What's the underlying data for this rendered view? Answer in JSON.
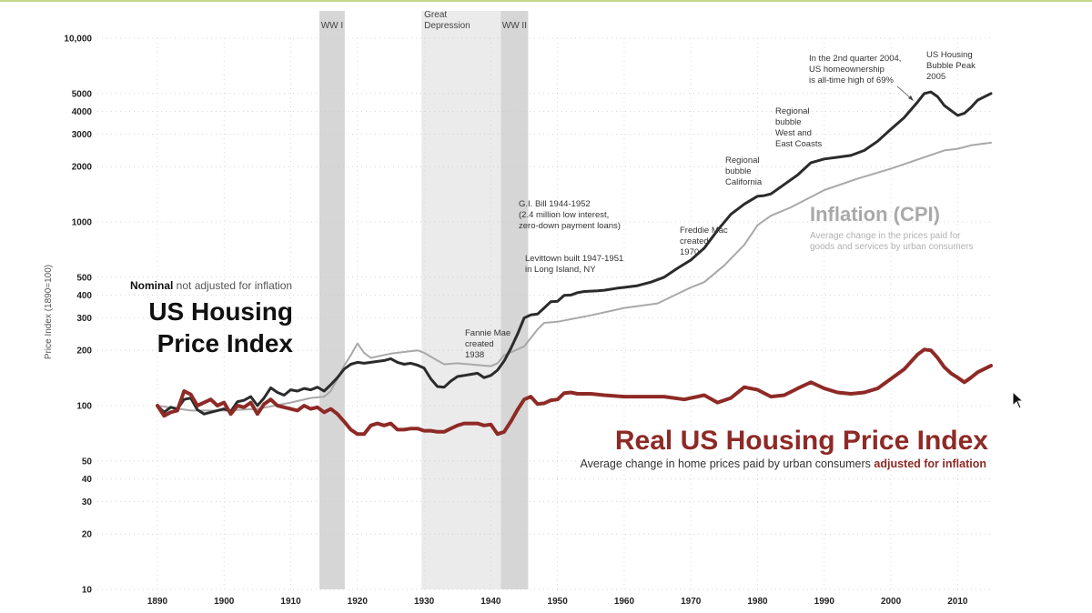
{
  "chart_data": {
    "type": "line",
    "yscale": "log",
    "ylabel": "Price Index  (1890=100)",
    "xlim": [
      1881,
      2015
    ],
    "ylim": [
      10,
      10000
    ],
    "x_ticks": [
      1890,
      1900,
      1910,
      1920,
      1930,
      1940,
      1950,
      1960,
      1970,
      1980,
      1990,
      2000,
      2010
    ],
    "y_ticks": [
      {
        "value": 10,
        "label": "10"
      },
      {
        "value": 20,
        "label": "20"
      },
      {
        "value": 30,
        "label": "30"
      },
      {
        "value": 40,
        "label": "40"
      },
      {
        "value": 50,
        "label": "50"
      },
      {
        "value": 100,
        "label": "100"
      },
      {
        "value": 200,
        "label": "200"
      },
      {
        "value": 300,
        "label": "300"
      },
      {
        "value": 400,
        "label": "400"
      },
      {
        "value": 500,
        "label": "500"
      },
      {
        "value": 1000,
        "label": "1000"
      },
      {
        "value": 2000,
        "label": "2000"
      },
      {
        "value": 3000,
        "label": "3000"
      },
      {
        "value": 4000,
        "label": "4000"
      },
      {
        "value": 5000,
        "label": "5000"
      },
      {
        "value": 10000,
        "label": "10,000"
      }
    ],
    "shaded_periods": [
      {
        "label": "WW I",
        "start": 1914.3,
        "end": 1918.1
      },
      {
        "label": "Great\nDepression",
        "start": 1929.6,
        "end": 1941.5
      },
      {
        "label": "WW II",
        "start": 1941.5,
        "end": 1945.6
      }
    ],
    "series": [
      {
        "name": "Nominal US Housing Price Index",
        "color": "#2b2b2b",
        "width": 3,
        "x": [
          1890,
          1891,
          1892,
          1893,
          1894,
          1895,
          1896,
          1897,
          1898,
          1899,
          1900,
          1901,
          1902,
          1903,
          1904,
          1905,
          1906,
          1907,
          1908,
          1909,
          1910,
          1911,
          1912,
          1913,
          1914,
          1915,
          1916,
          1917,
          1918,
          1919,
          1920,
          1921,
          1922,
          1923,
          1924,
          1925,
          1926,
          1927,
          1928,
          1929,
          1930,
          1931,
          1932,
          1933,
          1934,
          1935,
          1936,
          1937,
          1938,
          1939,
          1940,
          1941,
          1942,
          1943,
          1944,
          1945,
          1946,
          1947,
          1948,
          1949,
          1950,
          1951,
          1952,
          1953,
          1954,
          1955,
          1956,
          1957,
          1958,
          1959,
          1960,
          1962,
          1964,
          1966,
          1968,
          1970,
          1972,
          1974,
          1976,
          1978,
          1980,
          1981,
          1982,
          1984,
          1986,
          1988,
          1990,
          1992,
          1994,
          1996,
          1998,
          2000,
          2002,
          2004,
          2005,
          2006,
          2007,
          2008,
          2010,
          2011,
          2012,
          2013,
          2015
        ],
        "values": [
          100,
          92,
          98,
          96,
          108,
          110,
          95,
          90,
          92,
          94,
          96,
          93,
          105,
          107,
          112,
          100,
          110,
          125,
          118,
          114,
          122,
          120,
          124,
          122,
          126,
          120,
          130,
          142,
          158,
          168,
          172,
          170,
          172,
          174,
          176,
          180,
          172,
          168,
          170,
          166,
          160,
          140,
          127,
          126,
          136,
          144,
          146,
          148,
          150,
          142,
          146,
          156,
          175,
          205,
          245,
          300,
          312,
          315,
          340,
          368,
          370,
          398,
          400,
          412,
          418,
          420,
          422,
          425,
          430,
          436,
          440,
          450,
          470,
          500,
          560,
          620,
          720,
          900,
          1100,
          1250,
          1380,
          1390,
          1420,
          1600,
          1800,
          2100,
          2200,
          2250,
          2300,
          2450,
          2750,
          3200,
          3700,
          4500,
          5000,
          5100,
          4800,
          4300,
          3800,
          3900,
          4200,
          4600,
          5000
        ]
      },
      {
        "name": "Inflation (CPI)",
        "color": "#a8a8a8",
        "width": 2,
        "x": [
          1890,
          1895,
          1900,
          1905,
          1910,
          1913,
          1915,
          1916,
          1917,
          1918,
          1919,
          1920,
          1921,
          1922,
          1925,
          1929,
          1930,
          1932,
          1933,
          1935,
          1940,
          1941,
          1942,
          1945,
          1947,
          1948,
          1950,
          1955,
          1960,
          1965,
          1970,
          1972,
          1975,
          1978,
          1980,
          1982,
          1985,
          1990,
          1995,
          2000,
          2005,
          2008,
          2010,
          2012,
          2015
        ],
        "values": [
          100,
          94,
          94,
          96,
          104,
          110,
          112,
          120,
          140,
          165,
          188,
          218,
          194,
          182,
          192,
          200,
          194,
          176,
          168,
          170,
          164,
          170,
          188,
          210,
          260,
          282,
          286,
          310,
          340,
          360,
          440,
          470,
          580,
          750,
          960,
          1080,
          1200,
          1490,
          1720,
          1950,
          2250,
          2450,
          2500,
          2610,
          2700
        ]
      },
      {
        "name": "Real US Housing Price Index",
        "color": "#8e2a26",
        "width": 4,
        "x": [
          1890,
          1891,
          1892,
          1893,
          1894,
          1895,
          1896,
          1897,
          1898,
          1899,
          1900,
          1901,
          1902,
          1903,
          1904,
          1905,
          1906,
          1907,
          1908,
          1909,
          1910,
          1911,
          1912,
          1913,
          1914,
          1915,
          1916,
          1917,
          1918,
          1919,
          1920,
          1921,
          1922,
          1923,
          1924,
          1925,
          1926,
          1927,
          1928,
          1929,
          1930,
          1931,
          1932,
          1933,
          1934,
          1935,
          1936,
          1937,
          1938,
          1939,
          1940,
          1941,
          1942,
          1943,
          1944,
          1945,
          1946,
          1947,
          1948,
          1949,
          1950,
          1951,
          1952,
          1953,
          1955,
          1957,
          1960,
          1963,
          1966,
          1969,
          1972,
          1974,
          1976,
          1978,
          1980,
          1982,
          1984,
          1986,
          1988,
          1990,
          1992,
          1994,
          1996,
          1998,
          2000,
          2002,
          2004,
          2005,
          2006,
          2007,
          2008,
          2009,
          2010,
          2011,
          2012,
          2013,
          2015
        ],
        "values": [
          100,
          88,
          92,
          94,
          120,
          115,
          100,
          104,
          108,
          100,
          104,
          90,
          100,
          98,
          104,
          90,
          102,
          108,
          100,
          98,
          96,
          94,
          100,
          96,
          98,
          92,
          96,
          90,
          82,
          74,
          70,
          70,
          78,
          80,
          78,
          80,
          74,
          74,
          75,
          75,
          73,
          73,
          72,
          72,
          75,
          78,
          80,
          80,
          80,
          78,
          79,
          70,
          72,
          82,
          95,
          108,
          112,
          102,
          103,
          107,
          108,
          117,
          118,
          116,
          116,
          114,
          112,
          112,
          112,
          108,
          114,
          104,
          110,
          126,
          122,
          112,
          114,
          124,
          134,
          124,
          118,
          116,
          118,
          124,
          140,
          158,
          190,
          202,
          200,
          182,
          162,
          150,
          142,
          134,
          142,
          152,
          165
        ]
      }
    ],
    "annotations": [
      {
        "lines": [
          "Fannie Mae",
          "created",
          "1938"
        ]
      },
      {
        "lines": [
          "G.I. Bill  1944-1952",
          "(2.4 million low interest,",
          "zero-down payment loans)"
        ]
      },
      {
        "lines": [
          "Levittown built 1947-1951",
          "in Long Island, NY"
        ]
      },
      {
        "lines": [
          "Freddie Mac",
          "created",
          "1970"
        ]
      },
      {
        "lines": [
          "Regional",
          "bubble",
          "California"
        ]
      },
      {
        "lines": [
          "Regional",
          "bubble",
          "West and",
          "East Coasts"
        ]
      },
      {
        "lines": [
          "In the 2nd quarter 2004,",
          "US homeownership",
          "is all-time high of 69%"
        ]
      },
      {
        "lines": [
          "US Housing",
          "Bubble Peak",
          "2005"
        ]
      }
    ]
  },
  "titles": {
    "nominal_bold": "Nominal",
    "nominal_rest": " not adjusted for inflation",
    "main_line1": "US Housing",
    "main_line2": "Price Index",
    "real_title": "Real US Housing Price Index",
    "real_sub_plain": "Average change in home prices paid by urban consumers ",
    "real_sub_emph": "adjusted for inflation",
    "cpi_title": "Inflation (CPI)",
    "cpi_sub_line1": "Average change in the prices paid for",
    "cpi_sub_line2": "goods and services by urban consumers"
  },
  "colors": {
    "nominal": "#2b2b2b",
    "cpi": "#a8a8a8",
    "real": "#8e2a26",
    "band": "#d6d6d6",
    "band_light": "#ebebeb"
  }
}
